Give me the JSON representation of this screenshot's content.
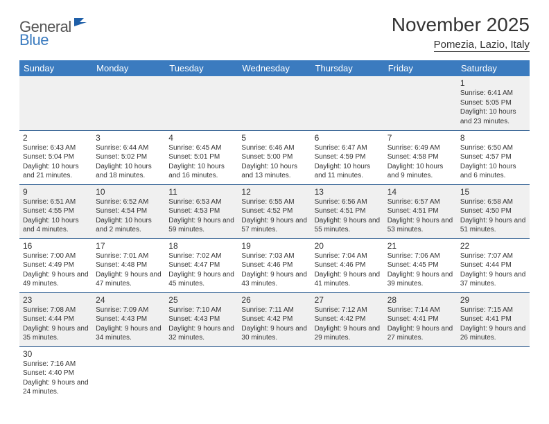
{
  "logo": {
    "part1": "General",
    "part2": "Blue"
  },
  "title": "November 2025",
  "location": "Pomezia, Lazio, Italy",
  "colors": {
    "header_bg": "#3b7bbf",
    "header_text": "#ffffff",
    "row_alt_bg": "#f0f0f0",
    "border": "#2a5a8f",
    "text": "#333333",
    "logo_gray": "#555555",
    "logo_blue": "#3b7bbf"
  },
  "day_headers": [
    "Sunday",
    "Monday",
    "Tuesday",
    "Wednesday",
    "Thursday",
    "Friday",
    "Saturday"
  ],
  "weeks": [
    [
      null,
      null,
      null,
      null,
      null,
      null,
      {
        "n": "1",
        "sr": "6:41 AM",
        "ss": "5:05 PM",
        "dl": "10 hours and 23 minutes."
      }
    ],
    [
      {
        "n": "2",
        "sr": "6:43 AM",
        "ss": "5:04 PM",
        "dl": "10 hours and 21 minutes."
      },
      {
        "n": "3",
        "sr": "6:44 AM",
        "ss": "5:02 PM",
        "dl": "10 hours and 18 minutes."
      },
      {
        "n": "4",
        "sr": "6:45 AM",
        "ss": "5:01 PM",
        "dl": "10 hours and 16 minutes."
      },
      {
        "n": "5",
        "sr": "6:46 AM",
        "ss": "5:00 PM",
        "dl": "10 hours and 13 minutes."
      },
      {
        "n": "6",
        "sr": "6:47 AM",
        "ss": "4:59 PM",
        "dl": "10 hours and 11 minutes."
      },
      {
        "n": "7",
        "sr": "6:49 AM",
        "ss": "4:58 PM",
        "dl": "10 hours and 9 minutes."
      },
      {
        "n": "8",
        "sr": "6:50 AM",
        "ss": "4:57 PM",
        "dl": "10 hours and 6 minutes."
      }
    ],
    [
      {
        "n": "9",
        "sr": "6:51 AM",
        "ss": "4:55 PM",
        "dl": "10 hours and 4 minutes."
      },
      {
        "n": "10",
        "sr": "6:52 AM",
        "ss": "4:54 PM",
        "dl": "10 hours and 2 minutes."
      },
      {
        "n": "11",
        "sr": "6:53 AM",
        "ss": "4:53 PM",
        "dl": "9 hours and 59 minutes."
      },
      {
        "n": "12",
        "sr": "6:55 AM",
        "ss": "4:52 PM",
        "dl": "9 hours and 57 minutes."
      },
      {
        "n": "13",
        "sr": "6:56 AM",
        "ss": "4:51 PM",
        "dl": "9 hours and 55 minutes."
      },
      {
        "n": "14",
        "sr": "6:57 AM",
        "ss": "4:51 PM",
        "dl": "9 hours and 53 minutes."
      },
      {
        "n": "15",
        "sr": "6:58 AM",
        "ss": "4:50 PM",
        "dl": "9 hours and 51 minutes."
      }
    ],
    [
      {
        "n": "16",
        "sr": "7:00 AM",
        "ss": "4:49 PM",
        "dl": "9 hours and 49 minutes."
      },
      {
        "n": "17",
        "sr": "7:01 AM",
        "ss": "4:48 PM",
        "dl": "9 hours and 47 minutes."
      },
      {
        "n": "18",
        "sr": "7:02 AM",
        "ss": "4:47 PM",
        "dl": "9 hours and 45 minutes."
      },
      {
        "n": "19",
        "sr": "7:03 AM",
        "ss": "4:46 PM",
        "dl": "9 hours and 43 minutes."
      },
      {
        "n": "20",
        "sr": "7:04 AM",
        "ss": "4:46 PM",
        "dl": "9 hours and 41 minutes."
      },
      {
        "n": "21",
        "sr": "7:06 AM",
        "ss": "4:45 PM",
        "dl": "9 hours and 39 minutes."
      },
      {
        "n": "22",
        "sr": "7:07 AM",
        "ss": "4:44 PM",
        "dl": "9 hours and 37 minutes."
      }
    ],
    [
      {
        "n": "23",
        "sr": "7:08 AM",
        "ss": "4:44 PM",
        "dl": "9 hours and 35 minutes."
      },
      {
        "n": "24",
        "sr": "7:09 AM",
        "ss": "4:43 PM",
        "dl": "9 hours and 34 minutes."
      },
      {
        "n": "25",
        "sr": "7:10 AM",
        "ss": "4:43 PM",
        "dl": "9 hours and 32 minutes."
      },
      {
        "n": "26",
        "sr": "7:11 AM",
        "ss": "4:42 PM",
        "dl": "9 hours and 30 minutes."
      },
      {
        "n": "27",
        "sr": "7:12 AM",
        "ss": "4:42 PM",
        "dl": "9 hours and 29 minutes."
      },
      {
        "n": "28",
        "sr": "7:14 AM",
        "ss": "4:41 PM",
        "dl": "9 hours and 27 minutes."
      },
      {
        "n": "29",
        "sr": "7:15 AM",
        "ss": "4:41 PM",
        "dl": "9 hours and 26 minutes."
      }
    ],
    [
      {
        "n": "30",
        "sr": "7:16 AM",
        "ss": "4:40 PM",
        "dl": "9 hours and 24 minutes."
      },
      null,
      null,
      null,
      null,
      null,
      null
    ]
  ],
  "labels": {
    "sunrise": "Sunrise:",
    "sunset": "Sunset:",
    "daylight": "Daylight:"
  }
}
